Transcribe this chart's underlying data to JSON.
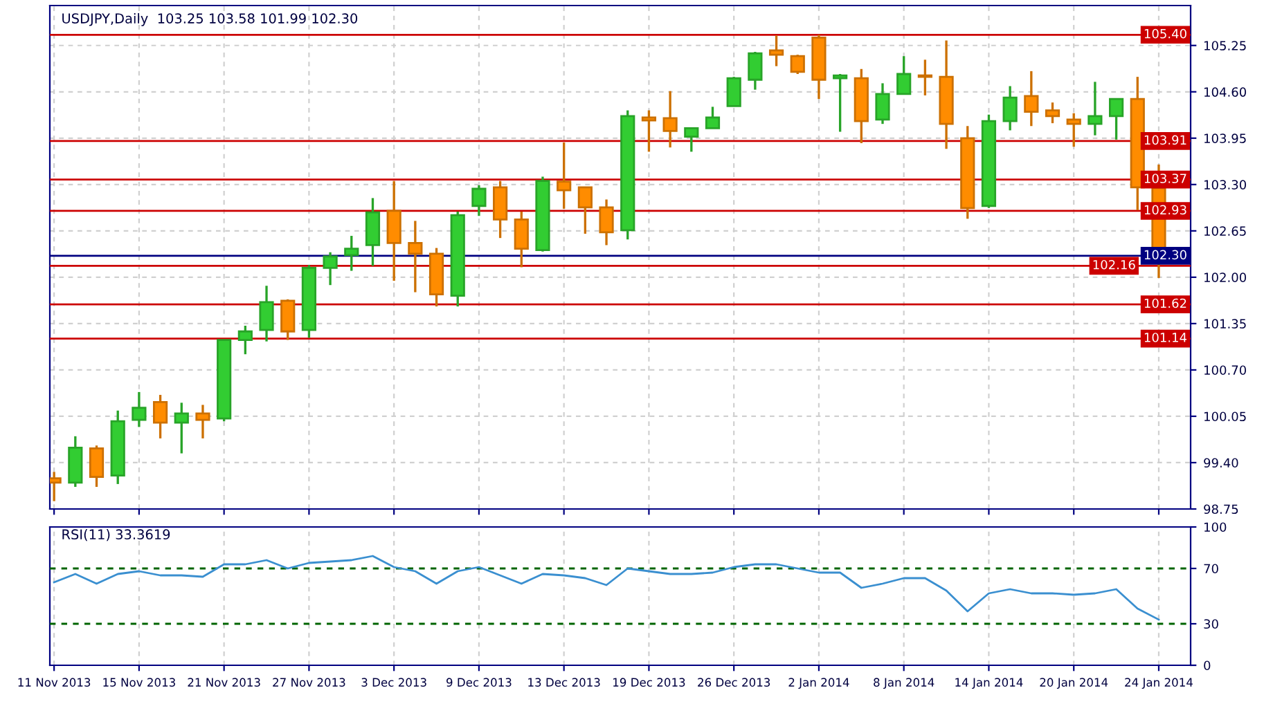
{
  "chart_data": [
    {
      "type": "candlestick",
      "title": "USDJPY,Daily  103.25 103.58 101.99 102.30",
      "categories": [
        null,
        null,
        null,
        null,
        null,
        null,
        null,
        null,
        null,
        null,
        null,
        null,
        null,
        null,
        null,
        null,
        null,
        null,
        null,
        null,
        null,
        null,
        null,
        null,
        null,
        null,
        null,
        null,
        null,
        null,
        null,
        null,
        null,
        null,
        null,
        null,
        null,
        null,
        null,
        null,
        null,
        null,
        null,
        null,
        null,
        null,
        null,
        null,
        null,
        null,
        null,
        null,
        null
      ],
      "ohlc": [
        [
          99.18,
          99.27,
          98.86,
          99.12
        ],
        [
          99.12,
          99.77,
          99.06,
          99.61
        ],
        [
          99.6,
          99.64,
          99.06,
          99.2
        ],
        [
          99.22,
          100.13,
          99.1,
          99.98
        ],
        [
          100.0,
          100.39,
          99.9,
          100.17
        ],
        [
          100.25,
          100.35,
          99.74,
          99.96
        ],
        [
          99.96,
          100.24,
          99.53,
          100.09
        ],
        [
          100.09,
          100.21,
          99.74,
          100.0
        ],
        [
          100.02,
          101.12,
          99.98,
          101.12
        ],
        [
          101.12,
          101.32,
          100.92,
          101.24
        ],
        [
          101.26,
          101.88,
          101.1,
          101.65
        ],
        [
          101.67,
          101.69,
          101.12,
          101.24
        ],
        [
          101.26,
          102.17,
          101.15,
          102.13
        ],
        [
          102.13,
          102.35,
          101.89,
          102.29
        ],
        [
          102.31,
          102.58,
          102.09,
          102.4
        ],
        [
          102.45,
          103.11,
          102.16,
          102.91
        ],
        [
          102.93,
          103.35,
          101.95,
          102.48
        ],
        [
          102.48,
          102.79,
          101.79,
          102.33
        ],
        [
          102.33,
          102.41,
          101.59,
          101.76
        ],
        [
          101.74,
          102.92,
          101.59,
          102.87
        ],
        [
          103.0,
          103.29,
          102.86,
          103.24
        ],
        [
          103.26,
          103.35,
          102.55,
          102.81
        ],
        [
          102.81,
          102.92,
          102.14,
          102.4
        ],
        [
          102.38,
          103.41,
          102.36,
          103.35
        ],
        [
          103.34,
          103.89,
          102.96,
          103.22
        ],
        [
          103.26,
          103.26,
          102.61,
          102.98
        ],
        [
          102.98,
          103.09,
          102.45,
          102.63
        ],
        [
          102.66,
          104.34,
          102.53,
          104.26
        ],
        [
          104.24,
          104.34,
          103.76,
          104.2
        ],
        [
          104.23,
          104.61,
          103.82,
          104.05
        ],
        [
          103.97,
          104.09,
          103.76,
          104.09
        ],
        [
          104.09,
          104.39,
          104.09,
          104.24
        ],
        [
          104.4,
          104.81,
          104.4,
          104.79
        ],
        [
          104.77,
          105.16,
          104.63,
          105.14
        ],
        [
          105.18,
          105.39,
          104.96,
          105.12
        ],
        [
          105.1,
          105.12,
          104.85,
          104.88
        ],
        [
          105.36,
          105.4,
          104.5,
          104.77
        ],
        [
          104.79,
          104.85,
          104.04,
          104.83
        ],
        [
          104.79,
          104.92,
          103.88,
          104.19
        ],
        [
          104.21,
          104.72,
          104.15,
          104.57
        ],
        [
          104.57,
          105.1,
          104.57,
          104.85
        ],
        [
          104.83,
          105.05,
          104.55,
          104.81
        ],
        [
          104.81,
          105.32,
          103.8,
          104.15
        ],
        [
          103.95,
          104.12,
          102.82,
          102.97
        ],
        [
          103.0,
          104.28,
          102.97,
          104.19
        ],
        [
          104.19,
          104.68,
          104.06,
          104.52
        ],
        [
          104.54,
          104.89,
          104.12,
          104.32
        ],
        [
          104.34,
          104.45,
          104.16,
          104.26
        ],
        [
          104.21,
          104.3,
          103.83,
          104.15
        ],
        [
          104.15,
          104.74,
          103.99,
          104.26
        ],
        [
          104.26,
          104.5,
          103.93,
          104.5
        ],
        [
          104.5,
          104.81,
          102.94,
          103.26
        ],
        [
          103.25,
          103.58,
          101.99,
          102.3
        ]
      ],
      "colors": [
        "#ff8c00",
        "#32cd32",
        "#ff8c00",
        "#32cd32",
        "#32cd32",
        "#ff8c00",
        "#32cd32",
        "#ff8c00",
        "#32cd32",
        "#32cd32",
        "#32cd32",
        "#ff8c00",
        "#32cd32",
        "#32cd32",
        "#32cd32",
        "#32cd32",
        "#ff8c00",
        "#ff8c00",
        "#ff8c00",
        "#32cd32",
        "#32cd32",
        "#ff8c00",
        "#ff8c00",
        "#32cd32",
        "#ff8c00",
        "#ff8c00",
        "#ff8c00",
        "#32cd32",
        "#ff8c00",
        "#ff8c00",
        "#32cd32",
        "#32cd32",
        "#32cd32",
        "#32cd32",
        "#ff8c00",
        "#ff8c00",
        "#ff8c00",
        "#32cd32",
        "#ff8c00",
        "#32cd32",
        "#32cd32",
        "#ff8c00",
        "#ff8c00",
        "#ff8c00",
        "#32cd32",
        "#32cd32",
        "#ff8c00",
        "#ff8c00",
        "#ff8c00",
        "#32cd32",
        "#32cd32",
        "#ff8c00",
        "#ff8c00"
      ],
      "ylim": [
        98.75,
        105.81
      ],
      "yticks": [
        {
          "value": 98.75,
          "label": "98.75"
        },
        {
          "value": 99.4,
          "label": "99.40"
        },
        {
          "value": 100.05,
          "label": "100.05"
        },
        {
          "value": 100.7,
          "label": "100.70"
        },
        {
          "value": 101.35,
          "label": "101.35"
        },
        {
          "value": 102.0,
          "label": "102.00"
        },
        {
          "value": 102.65,
          "label": "102.65"
        },
        {
          "value": 103.3,
          "label": "103.30"
        },
        {
          "value": 103.95,
          "label": "103.95"
        },
        {
          "value": 104.6,
          "label": "104.60"
        },
        {
          "value": 105.25,
          "label": "105.25"
        }
      ],
      "ref_lines": [
        {
          "axis": "y",
          "value": 105.4,
          "label": "105.40",
          "color": "#cc0000"
        },
        {
          "axis": "y",
          "value": 103.91,
          "label": "103.91",
          "color": "#cc0000"
        },
        {
          "axis": "y",
          "value": 103.37,
          "label": "103.37",
          "color": "#cc0000"
        },
        {
          "axis": "y",
          "value": 102.93,
          "label": "102.93",
          "color": "#cc0000"
        },
        {
          "axis": "y",
          "value": 102.3,
          "label": "102.30",
          "color": "#000080"
        },
        {
          "axis": "y",
          "value": 102.16,
          "label": "102.16",
          "color": "#cc0000"
        },
        {
          "axis": "y",
          "value": 101.62,
          "label": "101.62",
          "color": "#cc0000"
        },
        {
          "axis": "y",
          "value": 101.14,
          "label": "101.14",
          "color": "#cc0000"
        }
      ],
      "grid": true,
      "tick_labels": "y"
    },
    {
      "type": "line",
      "title": "RSI(11) 33.3619",
      "categories": [
        "11 Nov 2013",
        null,
        null,
        null,
        "15 Nov 2013",
        null,
        null,
        null,
        "21 Nov 2013",
        null,
        null,
        null,
        "27 Nov 2013",
        null,
        null,
        null,
        "3 Dec 2013",
        null,
        null,
        null,
        "9 Dec 2013",
        null,
        null,
        null,
        "13 Dec 2013",
        null,
        null,
        null,
        "19 Dec 2013",
        null,
        null,
        null,
        "26 Dec 2013",
        null,
        null,
        null,
        "2 Jan 2014",
        null,
        null,
        null,
        "8 Jan 2014",
        null,
        null,
        null,
        "14 Jan 2014",
        null,
        null,
        null,
        "20 Jan 2014",
        null,
        null,
        null,
        "24 Jan 2014"
      ],
      "series": [
        {
          "color": "#3a8fd0",
          "values": [
            60,
            66,
            59,
            66,
            68,
            65,
            65,
            64,
            73,
            73,
            76,
            70,
            74,
            75,
            76,
            79,
            71,
            68,
            59,
            68,
            71,
            65,
            59,
            66,
            65,
            63,
            58,
            70,
            68,
            66,
            66,
            67,
            71,
            73,
            73,
            70,
            67,
            67,
            56,
            59,
            63,
            63,
            54,
            39,
            52,
            55,
            52,
            52,
            51,
            52,
            55,
            41,
            33
          ]
        }
      ],
      "ylim": [
        0,
        100
      ],
      "yticks": [
        0,
        30,
        70,
        100
      ],
      "ref_lines": [
        {
          "axis": "y",
          "value": 70,
          "color": "#006400",
          "line_style": "dashed"
        },
        {
          "axis": "y",
          "value": 30,
          "color": "#006400",
          "line_style": "dashed"
        }
      ],
      "grid": "x",
      "marker": "none",
      "line_style": "solid"
    }
  ]
}
